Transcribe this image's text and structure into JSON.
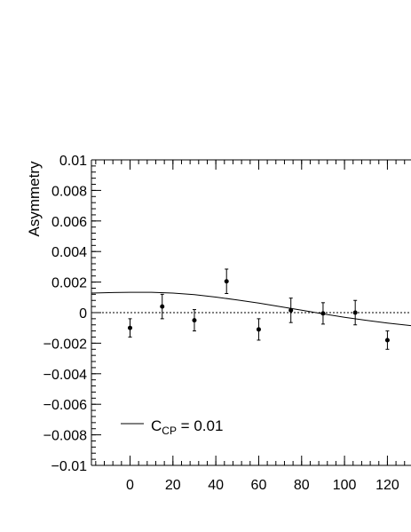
{
  "chart_data": {
    "type": "scatter",
    "title": "",
    "xlabel": "",
    "ylabel": "Asymmetry",
    "xlim": [
      -18,
      131
    ],
    "ylim": [
      -0.01,
      0.01
    ],
    "grid": false,
    "legend_position": "bottom-left",
    "x_ticks": [
      "0",
      "20",
      "40",
      "60",
      "80",
      "100",
      "120"
    ],
    "y_ticks": [
      "0.01",
      "0.008",
      "0.006",
      "0.004",
      "0.002",
      "0",
      "−0.002",
      "−0.004",
      "−0.006",
      "−0.008",
      "−0.01"
    ],
    "series": [
      {
        "kind": "points_with_errors",
        "x": [
          0,
          15,
          30,
          45,
          60,
          75,
          90,
          105,
          120
        ],
        "y": [
          -0.001,
          0.0004,
          -0.0005,
          0.00205,
          -0.0011,
          0.00015,
          -5e-05,
          0.0,
          -0.0018
        ],
        "yerr": [
          0.0006,
          0.0008,
          0.0007,
          0.0008,
          0.0007,
          0.0008,
          0.0007,
          0.0008,
          0.0006
        ]
      },
      {
        "kind": "curve",
        "name_main": "C",
        "name_sub": "CP",
        "name_suffix": " = 0.01",
        "x": [
          -18,
          -10,
          0,
          10,
          20,
          30,
          40,
          50,
          60,
          70,
          80,
          90,
          100,
          110,
          120,
          131
        ],
        "y": [
          0.00128,
          0.00131,
          0.00133,
          0.00133,
          0.00128,
          0.00118,
          0.00102,
          0.00083,
          0.00062,
          0.00039,
          0.00016,
          -8e-05,
          -0.0003,
          -0.0005,
          -0.00068,
          -0.00085
        ]
      }
    ],
    "reference_lines": [
      {
        "axis": "y",
        "value": 0,
        "style": "dotted"
      }
    ]
  }
}
